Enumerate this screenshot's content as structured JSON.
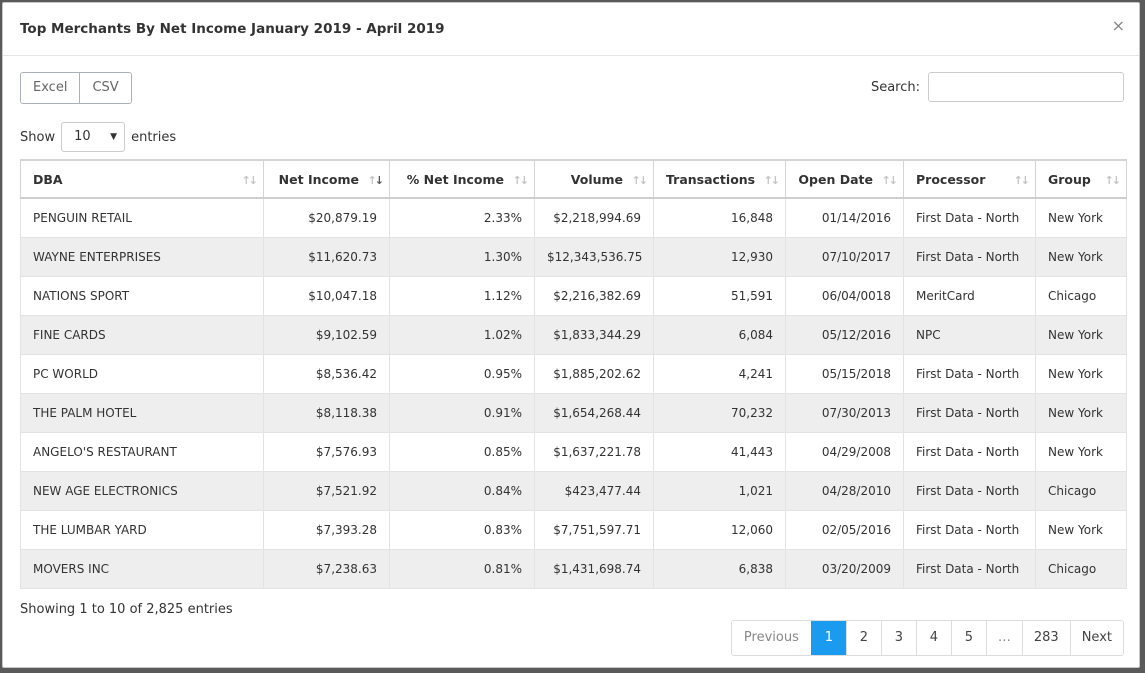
{
  "modal": {
    "title": "Top Merchants By Net Income January 2019 - April 2019",
    "close_glyph": "×"
  },
  "export": {
    "excel_label": "Excel",
    "csv_label": "CSV"
  },
  "search": {
    "label": "Search:",
    "value": ""
  },
  "length": {
    "show_label": "Show",
    "value": "10",
    "entries_label": "entries"
  },
  "table": {
    "headers": [
      "DBA",
      "Net Income",
      "% Net Income",
      "Volume",
      "Transactions",
      "Open Date",
      "Processor",
      "Group"
    ],
    "sort_glyph_up": "↑",
    "sort_glyph_down": "↓",
    "rows": [
      [
        "PENGUIN RETAIL",
        "$20,879.19",
        "2.33%",
        "$2,218,994.69",
        "16,848",
        "01/14/2016",
        "First Data - North",
        "New York"
      ],
      [
        "WAYNE ENTERPRISES",
        "$11,620.73",
        "1.30%",
        "$12,343,536.75",
        "12,930",
        "07/10/2017",
        "First Data - North",
        "New York"
      ],
      [
        "NATIONS SPORT",
        "$10,047.18",
        "1.12%",
        "$2,216,382.69",
        "51,591",
        "06/04/0018",
        "MeritCard",
        "Chicago"
      ],
      [
        "FINE CARDS",
        "$9,102.59",
        "1.02%",
        "$1,833,344.29",
        "6,084",
        "05/12/2016",
        "NPC",
        "New York"
      ],
      [
        "PC WORLD",
        "$8,536.42",
        "0.95%",
        "$1,885,202.62",
        "4,241",
        "05/15/2018",
        "First Data - North",
        "New York"
      ],
      [
        "THE PALM HOTEL",
        "$8,118.38",
        "0.91%",
        "$1,654,268.44",
        "70,232",
        "07/30/2013",
        "First Data - North",
        "New York"
      ],
      [
        "ANGELO'S RESTAURANT",
        "$7,576.93",
        "0.85%",
        "$1,637,221.78",
        "41,443",
        "04/29/2008",
        "First Data - North",
        "New York"
      ],
      [
        "NEW AGE ELECTRONICS",
        "$7,521.92",
        "0.84%",
        "$423,477.44",
        "1,021",
        "04/28/2010",
        "First Data - North",
        "Chicago"
      ],
      [
        "THE LUMBAR YARD",
        "$7,393.28",
        "0.83%",
        "$7,751,597.71",
        "12,060",
        "02/05/2016",
        "First Data - North",
        "New York"
      ],
      [
        "MOVERS INC",
        "$7,238.63",
        "0.81%",
        "$1,431,698.74",
        "6,838",
        "03/20/2009",
        "First Data - North",
        "Chicago"
      ]
    ]
  },
  "info": "Showing 1 to 10 of 2,825 entries",
  "pagination": {
    "previous": "Previous",
    "pages": [
      "1",
      "2",
      "3",
      "4",
      "5",
      "…",
      "283"
    ],
    "next": "Next",
    "active": "1",
    "active_color": "#1a9bf0"
  }
}
